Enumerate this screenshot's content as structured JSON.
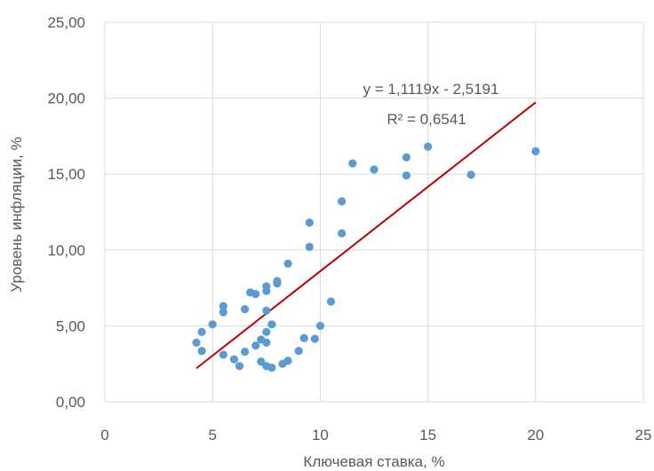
{
  "chart_data": {
    "type": "scatter",
    "xlabel": "Ключевая ставка, %",
    "ylabel": "Уровень инфляции, %",
    "xlim": [
      0,
      25
    ],
    "ylim": [
      0,
      25
    ],
    "x_ticks": [
      0,
      5,
      10,
      15,
      20,
      25
    ],
    "y_ticks": [
      0,
      5,
      10,
      15,
      20,
      25
    ],
    "x_tick_labels": [
      "0",
      "5",
      "10",
      "15",
      "20",
      "25"
    ],
    "y_tick_labels": [
      "0,00",
      "5,00",
      "10,00",
      "15,00",
      "20,00",
      "25,00"
    ],
    "grid": true,
    "point_color": "#5b9bd5",
    "trend_color": "#c00000",
    "trendline": {
      "slope": 1.1119,
      "intercept": -2.5191,
      "x_range": [
        4.25,
        20
      ],
      "equation": "y = 1,1119x - 2,5191",
      "r2": "R² = 0,6541"
    },
    "points": [
      [
        4.25,
        3.9
      ],
      [
        4.5,
        4.6
      ],
      [
        4.5,
        3.35
      ],
      [
        5.0,
        5.1
      ],
      [
        5.5,
        6.3
      ],
      [
        5.5,
        5.9
      ],
      [
        5.5,
        3.1
      ],
      [
        6.0,
        2.8
      ],
      [
        6.25,
        2.35
      ],
      [
        6.5,
        6.1
      ],
      [
        6.5,
        3.3
      ],
      [
        6.75,
        7.2
      ],
      [
        7.0,
        7.1
      ],
      [
        7.0,
        3.7
      ],
      [
        7.25,
        4.1
      ],
      [
        7.25,
        2.65
      ],
      [
        7.5,
        7.6
      ],
      [
        7.5,
        7.3
      ],
      [
        7.5,
        6.0
      ],
      [
        7.5,
        4.6
      ],
      [
        7.5,
        3.9
      ],
      [
        7.5,
        2.35
      ],
      [
        7.75,
        5.1
      ],
      [
        7.75,
        2.25
      ],
      [
        8.0,
        7.95
      ],
      [
        8.0,
        7.8
      ],
      [
        8.25,
        2.5
      ],
      [
        8.5,
        9.1
      ],
      [
        8.5,
        2.7
      ],
      [
        9.0,
        3.35
      ],
      [
        9.25,
        4.2
      ],
      [
        9.5,
        11.8
      ],
      [
        9.5,
        10.2
      ],
      [
        9.75,
        4.15
      ],
      [
        10.0,
        5.0
      ],
      [
        10.5,
        6.6
      ],
      [
        11.0,
        13.2
      ],
      [
        11.0,
        11.1
      ],
      [
        11.5,
        15.7
      ],
      [
        12.5,
        15.3
      ],
      [
        14.0,
        16.1
      ],
      [
        14.0,
        14.9
      ],
      [
        15.0,
        16.8
      ],
      [
        17.0,
        14.95
      ],
      [
        20.0,
        16.5
      ]
    ]
  }
}
